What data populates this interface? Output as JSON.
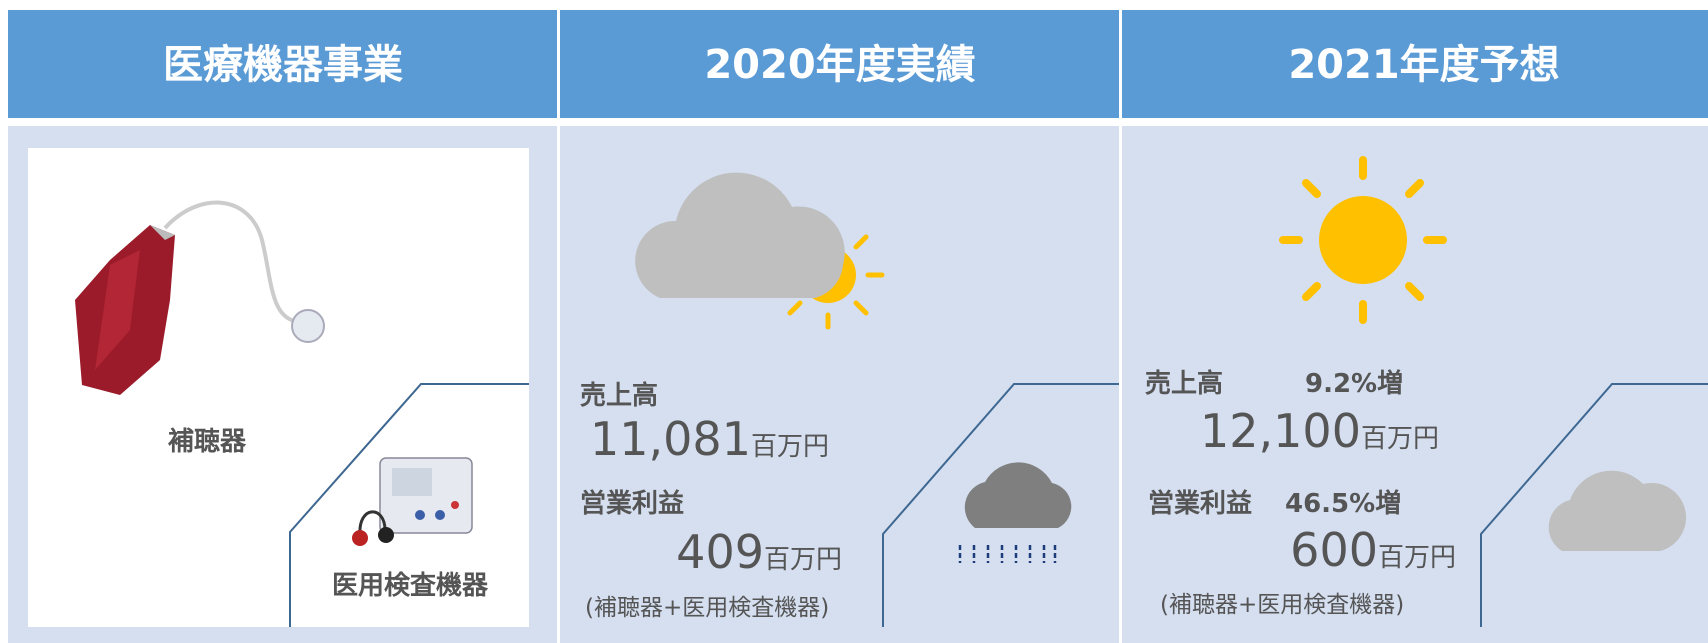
{
  "header": {
    "columns": [
      "医療機器事業",
      "2020年度実績",
      "2021年度予想"
    ]
  },
  "products": {
    "hearing_aid": "補聴器",
    "audiometer": "医用検査機器"
  },
  "fy2020": {
    "sales_label": "売上高",
    "sales": "11,081",
    "sales_unit": "百万円",
    "profit_label": "営業利益",
    "profit": "409",
    "profit_unit": "百万円",
    "note": "(補聴器+医用検査機器)"
  },
  "fy2021": {
    "sales_label": "売上高",
    "sales_growth": "9.2%増",
    "sales": "12,100",
    "sales_unit": "百万円",
    "profit_label": "営業利益",
    "profit_growth": "46.5%増",
    "profit": "600",
    "profit_unit": "百万円",
    "note": "(補聴器+医用検査機器)"
  }
}
